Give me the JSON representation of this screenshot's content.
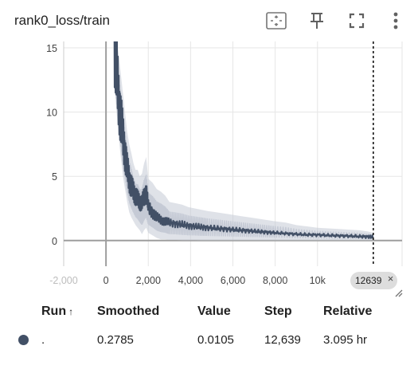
{
  "card": {
    "title": "rank0_loss/train",
    "icons": [
      "fit-domain-icon",
      "pin-icon",
      "fullscreen-icon",
      "more-vert-icon"
    ]
  },
  "chart_data": {
    "type": "line",
    "title": "rank0_loss/train",
    "xlabel": "",
    "ylabel": "",
    "xlim": [
      -2000,
      14000
    ],
    "ylim": [
      -2,
      15.5
    ],
    "x_ticks": [
      {
        "value": -2000,
        "label": "-2,000"
      },
      {
        "value": 0,
        "label": "0"
      },
      {
        "value": 2000,
        "label": "2,000"
      },
      {
        "value": 4000,
        "label": "4,000"
      },
      {
        "value": 6000,
        "label": "6,000"
      },
      {
        "value": 8000,
        "label": "8,000"
      },
      {
        "value": 10000,
        "label": "10k"
      }
    ],
    "y_ticks": [
      {
        "value": 0,
        "label": "0"
      },
      {
        "value": 5,
        "label": "5"
      },
      {
        "value": 10,
        "label": "10"
      },
      {
        "value": 15,
        "label": "15"
      }
    ],
    "grid": true,
    "cursor_step": 12639,
    "series": [
      {
        "name": ".",
        "color": "#425066",
        "raw_color": "#c5cad5",
        "x": [
          400,
          500,
          600,
          700,
          800,
          900,
          1000,
          1100,
          1200,
          1300,
          1400,
          1500,
          1600,
          1700,
          1800,
          1900,
          2000,
          2200,
          2400,
          2600,
          2800,
          3000,
          3300,
          3600,
          3900,
          4200,
          4500,
          4800,
          5200,
          5600,
          6000,
          6400,
          6800,
          7200,
          7600,
          8000,
          8500,
          9000,
          9500,
          10000,
          10500,
          11000,
          11500,
          12000,
          12400,
          12639
        ],
        "smoothed": [
          15.5,
          13.2,
          11.0,
          9.5,
          8.2,
          6.8,
          5.6,
          4.8,
          4.2,
          3.8,
          3.5,
          3.2,
          3.0,
          2.9,
          3.4,
          3.8,
          2.6,
          2.2,
          1.8,
          1.6,
          1.5,
          1.4,
          1.3,
          1.25,
          1.15,
          1.1,
          1.05,
          1.0,
          0.95,
          0.9,
          0.85,
          0.8,
          0.75,
          0.7,
          0.65,
          0.6,
          0.55,
          0.5,
          0.45,
          0.45,
          0.4,
          0.38,
          0.35,
          0.32,
          0.3,
          0.2785
        ],
        "raw_high": [
          16.0,
          15.5,
          14.5,
          13.0,
          11.5,
          10.0,
          8.5,
          7.5,
          6.8,
          6.0,
          5.5,
          5.5,
          5.0,
          5.2,
          6.0,
          6.5,
          4.8,
          4.5,
          4.0,
          3.8,
          3.5,
          3.0,
          2.9,
          2.8,
          2.6,
          2.5,
          2.4,
          2.3,
          2.2,
          2.1,
          2.0,
          1.9,
          1.8,
          1.7,
          1.6,
          1.5,
          1.4,
          1.2,
          1.1,
          1.0,
          0.95,
          0.9,
          0.85,
          0.8,
          0.7,
          0.6
        ],
        "raw_low": [
          12.0,
          10.0,
          8.0,
          6.5,
          5.0,
          4.0,
          3.0,
          2.2,
          1.8,
          1.5,
          1.2,
          1.0,
          0.8,
          0.5,
          0.8,
          1.0,
          0.6,
          0.4,
          0.2,
          0.1,
          0.1,
          0.05,
          0.05,
          0.02,
          0.02,
          0.02,
          0.01,
          0.01,
          0.01,
          0.01,
          0.01,
          0.01,
          0.01,
          0.01,
          0.01,
          0.01,
          0.01,
          0.01,
          0.01,
          0.01,
          0.01,
          0.01,
          0.01,
          0.01,
          0.01,
          0.0105
        ]
      }
    ]
  },
  "step_pill": {
    "label": "12639",
    "close_glyph": "×"
  },
  "table": {
    "headers": {
      "run": "Run",
      "sort_glyph": "↑",
      "smoothed": "Smoothed",
      "value": "Value",
      "step": "Step",
      "relative": "Relative"
    },
    "rows": [
      {
        "run": ".",
        "smoothed": "0.2785",
        "value": "0.0105",
        "step": "12,639",
        "relative": "3.095 hr",
        "color": "#425066"
      }
    ]
  }
}
